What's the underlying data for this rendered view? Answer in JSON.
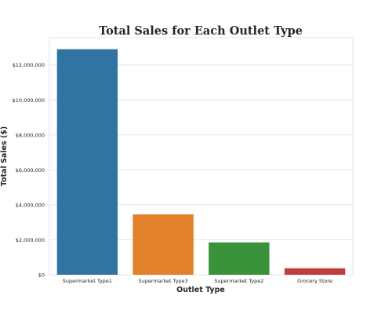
{
  "chart_data": {
    "type": "bar",
    "title": "Total Sales for Each Outlet Type",
    "xlabel": "Outlet Type",
    "ylabel": "Total Sales ($)",
    "categories": [
      "Supermarket Type1",
      "Supermarket Type3",
      "Supermarket Type2",
      "Grocery Store"
    ],
    "values": [
      12900000,
      3450000,
      1850000,
      370000
    ],
    "colors": [
      "#3274a1",
      "#e1812c",
      "#3a923a",
      "#c03d3e"
    ],
    "ylim": [
      0,
      13560000
    ],
    "yticks": [
      0,
      2000000,
      4000000,
      6000000,
      8000000,
      10000000,
      12000000
    ],
    "ytick_labels": [
      "$0",
      "$2,000,000",
      "$4,000,000",
      "$6,000,000",
      "$8,000,000",
      "$10,000,000",
      "$12,000,000"
    ],
    "grid": true,
    "legend": "none"
  }
}
